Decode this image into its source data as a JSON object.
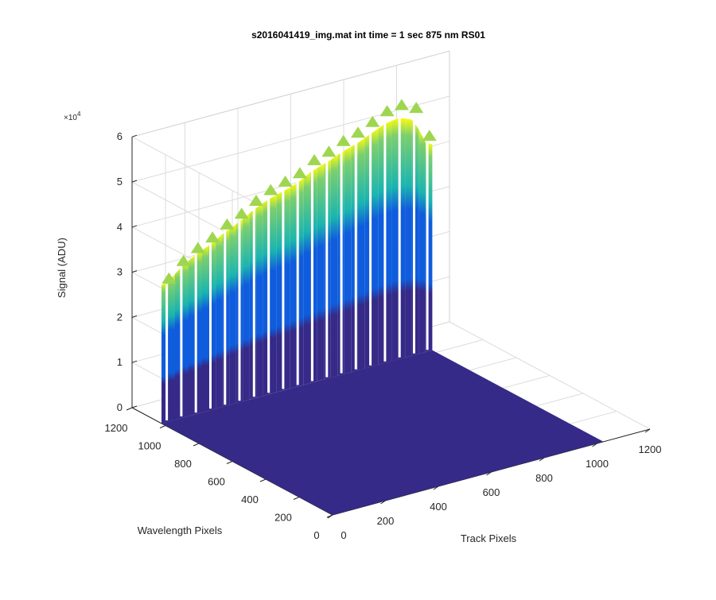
{
  "chart_data": {
    "type": "surface",
    "title": "s2016041419_img.mat int time = 1 sec  875 nm RS01",
    "xlabel": "Track Pixels",
    "ylabel": "Wavelength Pixels",
    "zlabel": "Signal (ADU)",
    "z_exponent_label": "×10",
    "z_exponent_power": "4",
    "xlim": [
      0,
      1200
    ],
    "ylim": [
      0,
      1200
    ],
    "zlim": [
      0,
      60000
    ],
    "x_ticks": [
      "0",
      "200",
      "400",
      "600",
      "800",
      "1000",
      "1200"
    ],
    "y_ticks": [
      "0",
      "200",
      "400",
      "600",
      "800",
      "1000",
      "1200"
    ],
    "z_ticks": [
      "0",
      "1",
      "2",
      "3",
      "4",
      "5",
      "6"
    ],
    "grid": true,
    "colormap": "parula",
    "colors": {
      "low": "#352a87",
      "mid": "#0f5cdd",
      "high": "#1ab5b0",
      "peak": "#f9fb0e"
    },
    "surface_extent": {
      "x": [
        0,
        1024
      ],
      "y": [
        0,
        1024
      ]
    },
    "signal_region": {
      "y_value": 1024,
      "x_range": [
        0,
        1024
      ]
    },
    "signal_ridges": {
      "x": [
        20,
        75,
        130,
        185,
        240,
        295,
        350,
        405,
        460,
        515,
        570,
        625,
        680,
        735,
        790,
        845,
        900,
        955,
        1005
      ],
      "peak": [
        33000,
        36000,
        38000,
        39500,
        41500,
        43000,
        45000,
        46500,
        47500,
        48500,
        50500,
        51500,
        53000,
        54000,
        55500,
        57000,
        57500,
        56000,
        49000
      ]
    }
  }
}
